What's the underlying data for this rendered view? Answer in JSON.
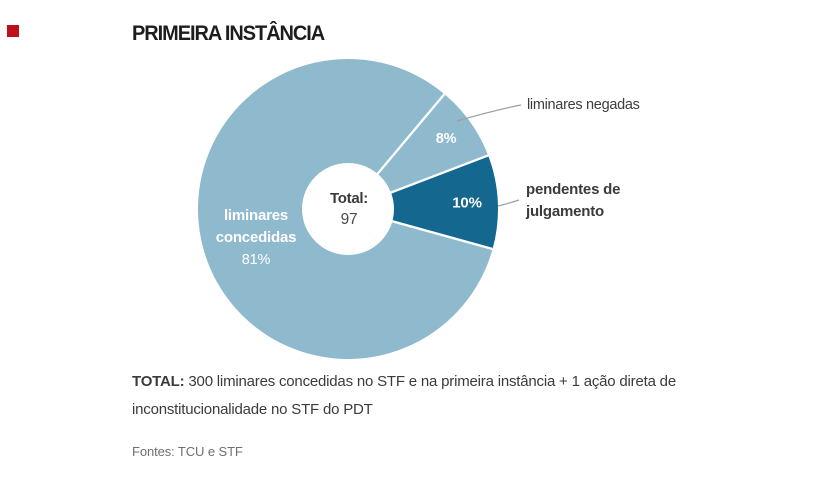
{
  "title": "PRIMEIRA INSTÂNCIA",
  "colors": {
    "light_blue": "#8fb9cd",
    "dark_blue": "#14678f",
    "brand_red": "#c00e1a",
    "text_dark": "#3b3b3b",
    "text_gray": "#6f6f6f",
    "leader_gray": "#9aa0a3"
  },
  "chart_data": {
    "type": "pie",
    "subtype": "donut",
    "title": "PRIMEIRA INSTÂNCIA",
    "center_label": "Total:",
    "center_value": "97",
    "start_angle_deg": 40,
    "legend_position": "outside-labels",
    "slices": [
      {
        "label": "liminares negadas",
        "pct": 8,
        "value_label": "8%",
        "color": "#8fb9cd"
      },
      {
        "label": "pendentes de julgamento",
        "pct": 10,
        "value_label": "10%",
        "color": "#14678f"
      },
      {
        "label": "liminares concedidas",
        "pct": 81,
        "value_label": "81%",
        "color": "#8fb9cd"
      }
    ]
  },
  "labels": {
    "negadas": "liminares negadas",
    "pendentes_line1": "pendentes de",
    "pendentes_line2": "julgamento",
    "concedidas_line1": "liminares",
    "concedidas_line2": "concedidas",
    "concedidas_pct": "81%",
    "pct_8": "8%",
    "pct_10": "10%",
    "total_label": "Total:",
    "total_value": "97"
  },
  "footer": {
    "bold_prefix": "TOTAL:",
    "line1": "300 liminares concedidas no STF e na primeira instância + 1 ação direta de",
    "line2": "inconstitucionalidade no STF do PDT",
    "sources": "Fontes: TCU e STF"
  }
}
